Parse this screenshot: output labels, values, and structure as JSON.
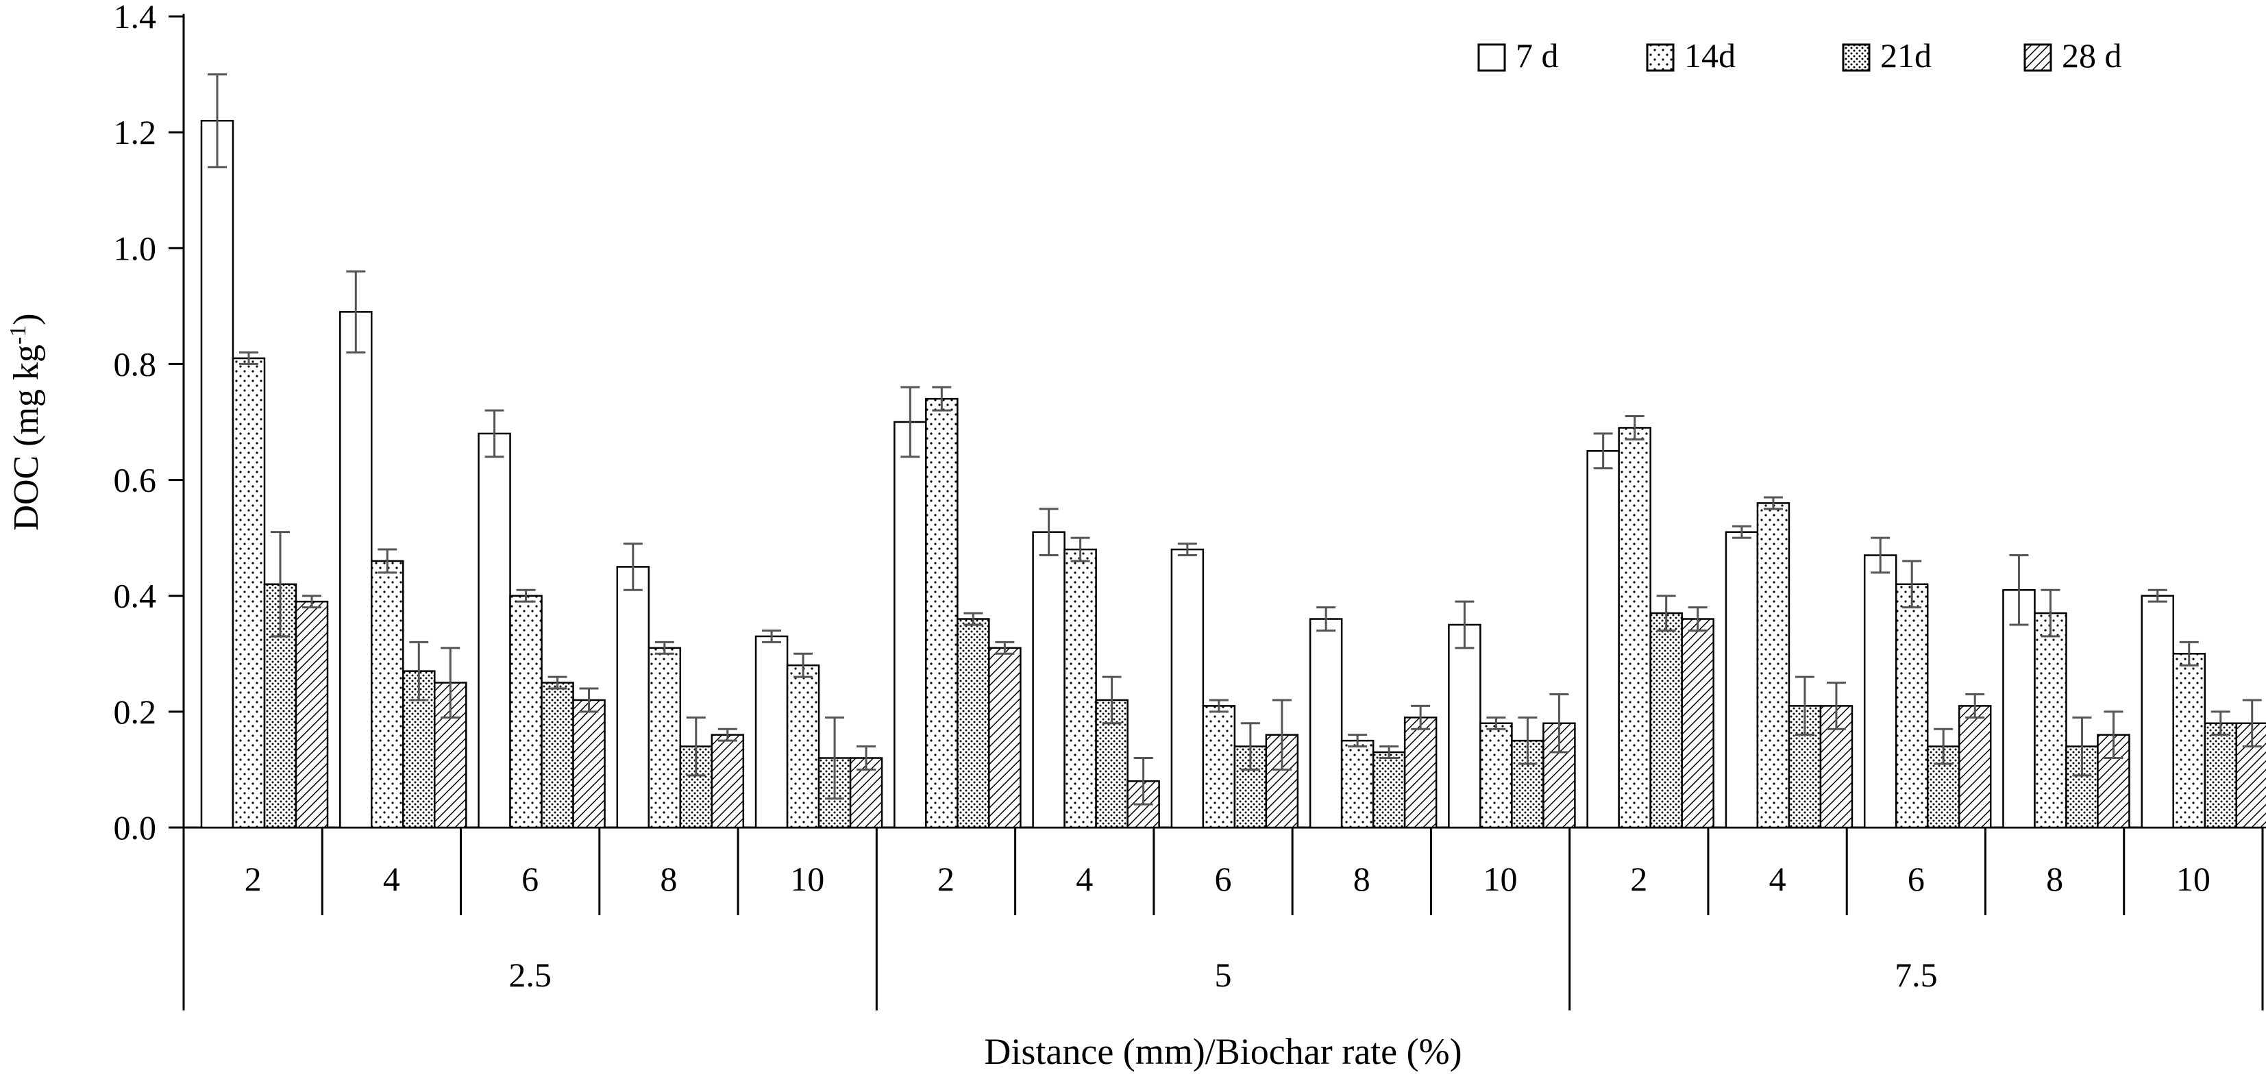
{
  "chart_data": {
    "type": "bar",
    "ylabel": "DOC (mg kg",
    "ylabel_sup": "-1",
    "ylabel_close": ")",
    "xlabel": "Distance (mm)/Biochar rate (%)",
    "ylim": [
      0,
      1.4
    ],
    "yticks": [
      "0.0",
      "0.2",
      "0.4",
      "0.6",
      "0.8",
      "1.0",
      "1.2",
      "1.4"
    ],
    "grid": false,
    "legend_position": "top-right",
    "groups": [
      {
        "label": "2.5",
        "categories": [
          "2",
          "4",
          "6",
          "8",
          "10"
        ]
      },
      {
        "label": "5",
        "categories": [
          "2",
          "4",
          "6",
          "8",
          "10"
        ]
      },
      {
        "label": "7.5",
        "categories": [
          "2",
          "4",
          "6",
          "8",
          "10"
        ]
      }
    ],
    "series": [
      {
        "name": "7 d",
        "pattern": "blank",
        "values": [
          1.22,
          0.89,
          0.68,
          0.45,
          0.33,
          0.7,
          0.51,
          0.48,
          0.36,
          0.35,
          0.65,
          0.51,
          0.47,
          0.41,
          0.4
        ],
        "errors": [
          0.08,
          0.07,
          0.04,
          0.04,
          0.01,
          0.06,
          0.04,
          0.01,
          0.02,
          0.04,
          0.03,
          0.01,
          0.03,
          0.06,
          0.01
        ]
      },
      {
        "name": "14d",
        "pattern": "sparse-dots",
        "values": [
          0.81,
          0.46,
          0.4,
          0.31,
          0.28,
          0.74,
          0.48,
          0.21,
          0.15,
          0.18,
          0.69,
          0.56,
          0.42,
          0.37,
          0.3
        ],
        "errors": [
          0.01,
          0.02,
          0.01,
          0.01,
          0.02,
          0.02,
          0.02,
          0.01,
          0.01,
          0.01,
          0.02,
          0.01,
          0.04,
          0.04,
          0.02
        ]
      },
      {
        "name": "21d",
        "pattern": "dense-dots",
        "values": [
          0.42,
          0.27,
          0.25,
          0.14,
          0.12,
          0.36,
          0.22,
          0.14,
          0.13,
          0.15,
          0.37,
          0.21,
          0.14,
          0.14,
          0.18
        ],
        "errors": [
          0.09,
          0.05,
          0.01,
          0.05,
          0.07,
          0.01,
          0.04,
          0.04,
          0.01,
          0.04,
          0.03,
          0.05,
          0.03,
          0.05,
          0.02
        ]
      },
      {
        "name": "28 d",
        "pattern": "hatch",
        "values": [
          0.39,
          0.25,
          0.22,
          0.16,
          0.12,
          0.31,
          0.08,
          0.16,
          0.19,
          0.18,
          0.36,
          0.21,
          0.21,
          0.16,
          0.18
        ],
        "errors": [
          0.01,
          0.06,
          0.02,
          0.01,
          0.02,
          0.01,
          0.04,
          0.06,
          0.02,
          0.05,
          0.02,
          0.04,
          0.02,
          0.04,
          0.04
        ]
      }
    ]
  }
}
